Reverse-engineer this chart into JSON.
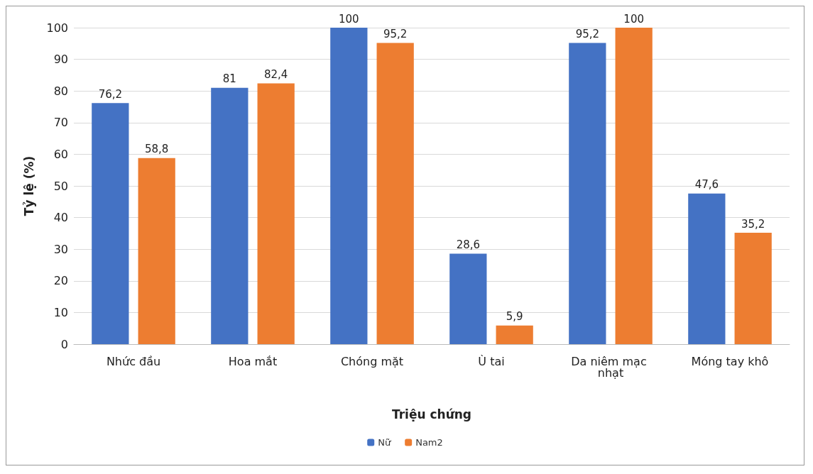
{
  "chart_data": {
    "type": "bar",
    "xlabel": "Triệu chứng",
    "ylabel": "Tỷ lệ (%)",
    "categories": [
      "Nhức đầu",
      "Hoa mắt",
      "Chóng mặt",
      "Ù tai",
      "Da niêm mạc nhạt",
      "Móng tay khô"
    ],
    "series": [
      {
        "name": "Nữ",
        "color": "#4472c4",
        "values": [
          76.2,
          81,
          100,
          28.6,
          95.2,
          47.6
        ],
        "value_labels": [
          "76,2",
          "81",
          "100",
          "28,6",
          "95,2",
          "47,6"
        ]
      },
      {
        "name": "Nam2",
        "color": "#ed7d31",
        "values": [
          58.8,
          82.4,
          95.2,
          5.9,
          100,
          35.2
        ],
        "value_labels": [
          "58,8",
          "82,4",
          "95,2",
          "5,9",
          "100",
          "35,2"
        ]
      }
    ],
    "ylim": [
      0,
      100
    ],
    "yticks": [
      0,
      10,
      20,
      30,
      40,
      50,
      60,
      70,
      80,
      90,
      100
    ],
    "grid": "y",
    "legend": "bottom"
  }
}
